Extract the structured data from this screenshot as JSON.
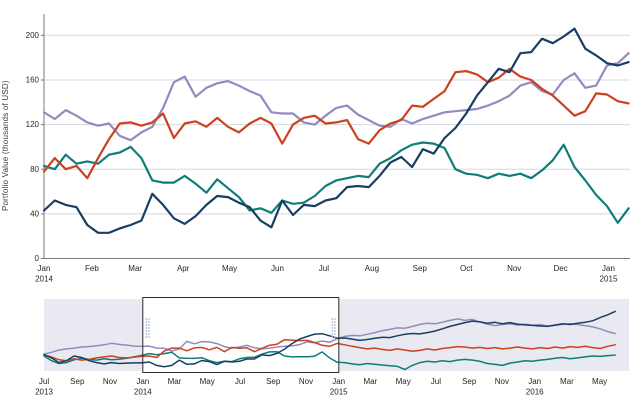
{
  "palette": {
    "navy": "#1a3e63",
    "vermilion": "#cd411e",
    "purple": "#918cbe",
    "teal": "#0f7d78",
    "gridline": "#d5d8e0",
    "axis_line": "#7a7a7a",
    "tick_text": "#262626",
    "overview_band_bg": "#e9eaf1",
    "selection_fill": "#ffffff",
    "selection_border": "#2b2b2b",
    "handle_dots": "#a9bad2"
  },
  "chart_data": [
    {
      "type": "line",
      "role": "main-detail-chart",
      "title": "",
      "xlabel": "",
      "ylabel": "Portfolio Value (thousands of USD)",
      "ylim": [
        0,
        220
      ],
      "yticks": [
        0,
        40,
        80,
        120,
        160,
        200
      ],
      "grid": true,
      "legend": "none",
      "x_unit": "weekly points, Jan 2014 - mid Jan 2015",
      "xticks": [
        {
          "label": "Jan",
          "sub": "2014",
          "day": 0
        },
        {
          "label": "Feb",
          "day": 31
        },
        {
          "label": "Mar",
          "day": 59
        },
        {
          "label": "Apr",
          "day": 90
        },
        {
          "label": "May",
          "day": 120
        },
        {
          "label": "Jun",
          "day": 151
        },
        {
          "label": "Jul",
          "day": 181
        },
        {
          "label": "Aug",
          "day": 212
        },
        {
          "label": "Sep",
          "day": 243
        },
        {
          "label": "Oct",
          "day": 273
        },
        {
          "label": "Nov",
          "day": 304
        },
        {
          "label": "Dec",
          "day": 334
        },
        {
          "label": "Jan",
          "sub": "2015",
          "day": 365
        }
      ],
      "series": [
        {
          "name": "teal",
          "color": "#0f7d78",
          "values": [
            83,
            80,
            93,
            85,
            87,
            85,
            93,
            95,
            100,
            90,
            70,
            68,
            68,
            74,
            67,
            59,
            71,
            63,
            55,
            43,
            45,
            41,
            52,
            49,
            50,
            56,
            65,
            70,
            72,
            74,
            73,
            85,
            90,
            97,
            102,
            104,
            103,
            99,
            80,
            76,
            75,
            72,
            76,
            74,
            76,
            72,
            79,
            88,
            102,
            82,
            70,
            57,
            47,
            32,
            45
          ]
        },
        {
          "name": "purple",
          "color": "#918cbe",
          "values": [
            131,
            125,
            133,
            128,
            122,
            119,
            121,
            110,
            106,
            113,
            118,
            135,
            158,
            163,
            145,
            153,
            157,
            159,
            155,
            150,
            146,
            131,
            130,
            130,
            122,
            120,
            128,
            135,
            137,
            129,
            124,
            119,
            118,
            125,
            121,
            125,
            128,
            131,
            132,
            133,
            134,
            137,
            141,
            146,
            155,
            158,
            150,
            147,
            160,
            166,
            153,
            155,
            173,
            175,
            184
          ]
        },
        {
          "name": "vermilion",
          "color": "#cd411e",
          "values": [
            78,
            90,
            80,
            83,
            72,
            90,
            107,
            121,
            122,
            119,
            122,
            130,
            108,
            121,
            123,
            118,
            126,
            118,
            113,
            121,
            126,
            121,
            103,
            120,
            126,
            128,
            121,
            122,
            124,
            107,
            103,
            115,
            121,
            124,
            137,
            136,
            143,
            150,
            167,
            168,
            165,
            158,
            162,
            170,
            163,
            160,
            152,
            146,
            137,
            128,
            132,
            148,
            147,
            141,
            139
          ]
        },
        {
          "name": "navy",
          "color": "#1a3e63",
          "values": [
            43,
            52,
            48,
            46,
            30,
            23,
            23,
            27,
            30,
            34,
            58,
            48,
            36,
            31,
            38,
            48,
            56,
            55,
            50,
            46,
            34,
            28,
            52,
            39,
            48,
            47,
            52,
            54,
            64,
            65,
            64,
            74,
            86,
            91,
            82,
            98,
            94,
            108,
            117,
            130,
            146,
            158,
            170,
            167,
            184,
            185,
            197,
            193,
            199,
            206,
            188,
            182,
            175,
            173,
            176
          ]
        }
      ]
    },
    {
      "type": "line",
      "role": "overview-brush-chart",
      "title": "",
      "ylim": [
        0,
        384
      ],
      "grid": false,
      "legend": "none",
      "x_unit": "bi-weekly points, Jul 2013 - Jun 2016",
      "selection": {
        "start_label": "Jan 2014",
        "end_label": "Jan 2015",
        "start_day": 184,
        "end_day": 549
      },
      "xticks": [
        {
          "label": "Jul",
          "sub": "2013",
          "day": 0
        },
        {
          "label": "Sep",
          "day": 62
        },
        {
          "label": "Nov",
          "day": 123
        },
        {
          "label": "Jan",
          "sub": "2014",
          "day": 184
        },
        {
          "label": "Mar",
          "day": 243
        },
        {
          "label": "May",
          "day": 304
        },
        {
          "label": "Jul",
          "day": 365
        },
        {
          "label": "Sep",
          "day": 427
        },
        {
          "label": "Nov",
          "day": 488
        },
        {
          "label": "Jan",
          "sub": "2015",
          "day": 549
        },
        {
          "label": "Mar",
          "day": 608
        },
        {
          "label": "May",
          "day": 669
        },
        {
          "label": "Jul",
          "day": 730
        },
        {
          "label": "Sep",
          "day": 792
        },
        {
          "label": "Nov",
          "day": 853
        },
        {
          "label": "Jan",
          "sub": "2016",
          "day": 914
        },
        {
          "label": "Mar",
          "day": 974
        },
        {
          "label": "May",
          "day": 1035
        }
      ],
      "series": [
        {
          "name": "teal",
          "color": "#0f7d78",
          "values": [
            80,
            55,
            40,
            45,
            60,
            68,
            62,
            58,
            65,
            60,
            63,
            68,
            75,
            83,
            93,
            87,
            93,
            100,
            70,
            68,
            67,
            71,
            55,
            45,
            52,
            50,
            65,
            72,
            73,
            90,
            102,
            103,
            80,
            75,
            76,
            76,
            79,
            102,
            70,
            47,
            45,
            38,
            33,
            40,
            36,
            32,
            28,
            25,
            8,
            30,
            45,
            52,
            48,
            55,
            50,
            58,
            62,
            58,
            52,
            40,
            35,
            30,
            42,
            48,
            55,
            52,
            58,
            62,
            68,
            72,
            65,
            70,
            75,
            80,
            78,
            82,
            85
          ]
        },
        {
          "name": "purple",
          "color": "#918cbe",
          "values": [
            90,
            100,
            112,
            118,
            122,
            128,
            130,
            135,
            140,
            148,
            142,
            138,
            133,
            131,
            133,
            122,
            121,
            106,
            118,
            158,
            145,
            157,
            155,
            146,
            130,
            122,
            128,
            137,
            124,
            118,
            121,
            128,
            132,
            134,
            141,
            155,
            150,
            160,
            153,
            173,
            184,
            190,
            188,
            196,
            205,
            215,
            222,
            230,
            228,
            238,
            248,
            255,
            252,
            260,
            270,
            278,
            270,
            275,
            262,
            250,
            242,
            248,
            252,
            245,
            250,
            243,
            248,
            240,
            245,
            248,
            252,
            248,
            242,
            235,
            225,
            210,
            200
          ]
        },
        {
          "name": "vermilion",
          "color": "#cd411e",
          "values": [
            85,
            75,
            60,
            55,
            65,
            58,
            62,
            70,
            75,
            80,
            72,
            70,
            74,
            78,
            80,
            72,
            107,
            122,
            122,
            108,
            123,
            126,
            113,
            126,
            103,
            126,
            121,
            124,
            103,
            121,
            137,
            143,
            167,
            165,
            162,
            163,
            152,
            137,
            132,
            147,
            140,
            132,
            125,
            118,
            122,
            115,
            110,
            118,
            112,
            105,
            110,
            118,
            112,
            120,
            125,
            130,
            128,
            122,
            126,
            120,
            125,
            118,
            122,
            128,
            122,
            118,
            125,
            120,
            128,
            122,
            130,
            126,
            132,
            125,
            120,
            132,
            140
          ]
        },
        {
          "name": "navy",
          "color": "#1a3e63",
          "values": [
            88,
            70,
            45,
            55,
            80,
            72,
            55,
            45,
            38,
            45,
            40,
            42,
            43,
            43,
            48,
            30,
            23,
            30,
            58,
            36,
            38,
            56,
            50,
            34,
            52,
            48,
            52,
            64,
            64,
            86,
            82,
            94,
            117,
            146,
            170,
            184,
            197,
            199,
            188,
            175,
            176,
            170,
            163,
            168,
            175,
            180,
            178,
            188,
            196,
            200,
            198,
            205,
            213,
            225,
            238,
            248,
            258,
            266,
            262,
            255,
            260,
            252,
            258,
            250,
            246,
            243,
            240,
            238,
            245,
            252,
            248,
            255,
            260,
            268,
            285,
            300,
            318
          ]
        }
      ]
    }
  ]
}
